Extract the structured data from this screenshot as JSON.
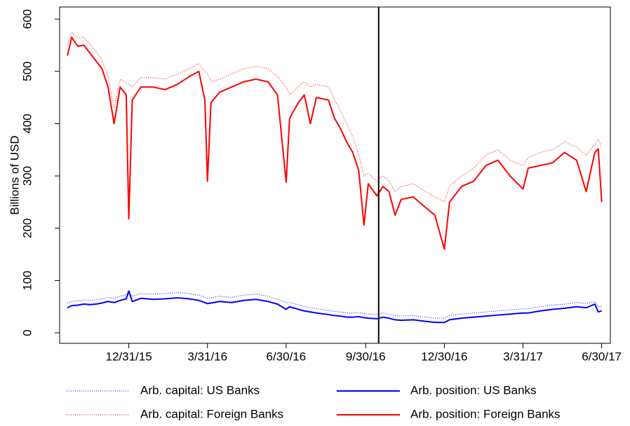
{
  "chart_data": {
    "type": "line",
    "y_label": "Billions of USD",
    "x": [
      "2015-10-21",
      "2015-10-26",
      "2015-11-02",
      "2015-11-09",
      "2015-11-16",
      "2015-11-23",
      "2015-11-30",
      "2015-12-07",
      "2015-12-14",
      "2015-12-21",
      "2015-12-28",
      "2015-12-31",
      "2016-01-04",
      "2016-01-14",
      "2016-01-28",
      "2016-02-11",
      "2016-02-25",
      "2016-03-10",
      "2016-03-21",
      "2016-03-28",
      "2016-03-31",
      "2016-04-04",
      "2016-04-14",
      "2016-04-28",
      "2016-05-12",
      "2016-05-26",
      "2016-06-09",
      "2016-06-20",
      "2016-06-30",
      "2016-07-04",
      "2016-07-14",
      "2016-07-21",
      "2016-07-28",
      "2016-08-04",
      "2016-08-18",
      "2016-08-25",
      "2016-09-01",
      "2016-09-08",
      "2016-09-15",
      "2016-09-22",
      "2016-09-28",
      "2016-10-03",
      "2016-10-13",
      "2016-10-20",
      "2016-10-27",
      "2016-11-03",
      "2016-11-10",
      "2016-11-24",
      "2016-12-08",
      "2016-12-19",
      "2016-12-30",
      "2017-01-05",
      "2017-01-19",
      "2017-02-02",
      "2017-02-16",
      "2017-03-02",
      "2017-03-16",
      "2017-03-31",
      "2017-04-06",
      "2017-04-20",
      "2017-05-04",
      "2017-05-18",
      "2017-06-01",
      "2017-06-12",
      "2017-06-22",
      "2017-06-26",
      "2017-06-30"
    ],
    "series": [
      {
        "name": "Arb. capital: US Banks",
        "color": "#0000ff",
        "linestyle": "dotted",
        "values": [
          57,
          60,
          61,
          63,
          62,
          63,
          65,
          68,
          66,
          70,
          73,
          78,
          70,
          75,
          74,
          75,
          77,
          75,
          72,
          68,
          66,
          67,
          70,
          68,
          72,
          74,
          70,
          64,
          58,
          58,
          54,
          50,
          48,
          46,
          43,
          41,
          40,
          38,
          38,
          39,
          37,
          36,
          35,
          38,
          36,
          33,
          32,
          33,
          30,
          28,
          28,
          33,
          36,
          38,
          40,
          42,
          44,
          46,
          46,
          50,
          53,
          55,
          58,
          56,
          60,
          50,
          50
        ]
      },
      {
        "name": "Arb. position: US Banks",
        "color": "#0000ff",
        "linestyle": "solid",
        "values": [
          48,
          52,
          53,
          55,
          54,
          55,
          57,
          60,
          58,
          62,
          65,
          80,
          60,
          66,
          64,
          65,
          67,
          65,
          62,
          58,
          56,
          57,
          60,
          58,
          62,
          64,
          60,
          55,
          45,
          50,
          45,
          42,
          40,
          38,
          35,
          33,
          32,
          30,
          30,
          31,
          29,
          28,
          27,
          30,
          28,
          25,
          24,
          25,
          22,
          20,
          20,
          25,
          28,
          30,
          32,
          34,
          36,
          38,
          38,
          42,
          45,
          47,
          50,
          48,
          55,
          40,
          42
        ]
      },
      {
        "name": "Arb. capital: Foreign Banks",
        "color": "#ff0000",
        "linestyle": "dotted",
        "values": [
          550,
          575,
          565,
          565,
          552,
          538,
          522,
          490,
          430,
          485,
          478,
          475,
          470,
          488,
          488,
          485,
          495,
          505,
          515,
          500,
          495,
          480,
          485,
          495,
          505,
          510,
          505,
          490,
          470,
          455,
          470,
          480,
          470,
          475,
          470,
          445,
          425,
          400,
          375,
          340,
          300,
          305,
          290,
          300,
          290,
          270,
          280,
          285,
          270,
          260,
          250,
          280,
          300,
          315,
          340,
          350,
          330,
          320,
          335,
          345,
          350,
          365,
          355,
          340,
          360,
          370,
          355
        ]
      },
      {
        "name": "Arb. position: Foreign Banks",
        "color": "#ff0000",
        "linestyle": "solid",
        "values": [
          530,
          565,
          548,
          550,
          535,
          520,
          505,
          470,
          400,
          470,
          455,
          218,
          445,
          470,
          470,
          465,
          475,
          490,
          500,
          445,
          290,
          440,
          460,
          470,
          480,
          485,
          480,
          455,
          288,
          410,
          440,
          455,
          400,
          450,
          445,
          410,
          390,
          365,
          345,
          310,
          206,
          285,
          262,
          280,
          270,
          225,
          255,
          260,
          240,
          225,
          160,
          250,
          280,
          290,
          320,
          330,
          300,
          275,
          315,
          320,
          325,
          345,
          330,
          270,
          345,
          352,
          250
        ]
      }
    ],
    "xlim": [
      "2015-10-12",
      "2017-07-10"
    ],
    "xticks": [
      {
        "value": "2015-12-31",
        "label": "12/31/15"
      },
      {
        "value": "2016-03-31",
        "label": "3/31/16"
      },
      {
        "value": "2016-06-30",
        "label": "6/30/16"
      },
      {
        "value": "2016-09-30",
        "label": "9/30/16"
      },
      {
        "value": "2016-12-30",
        "label": "12/30/16"
      },
      {
        "value": "2017-03-31",
        "label": "3/31/17"
      },
      {
        "value": "2017-06-30",
        "label": "6/30/17"
      }
    ],
    "ylim": [
      -20,
      623
    ],
    "yticks": [
      0,
      100,
      200,
      300,
      400,
      500,
      600
    ],
    "vline": "2016-10-15",
    "vline_color": "#000000",
    "grid": false,
    "legend": "bottom"
  }
}
